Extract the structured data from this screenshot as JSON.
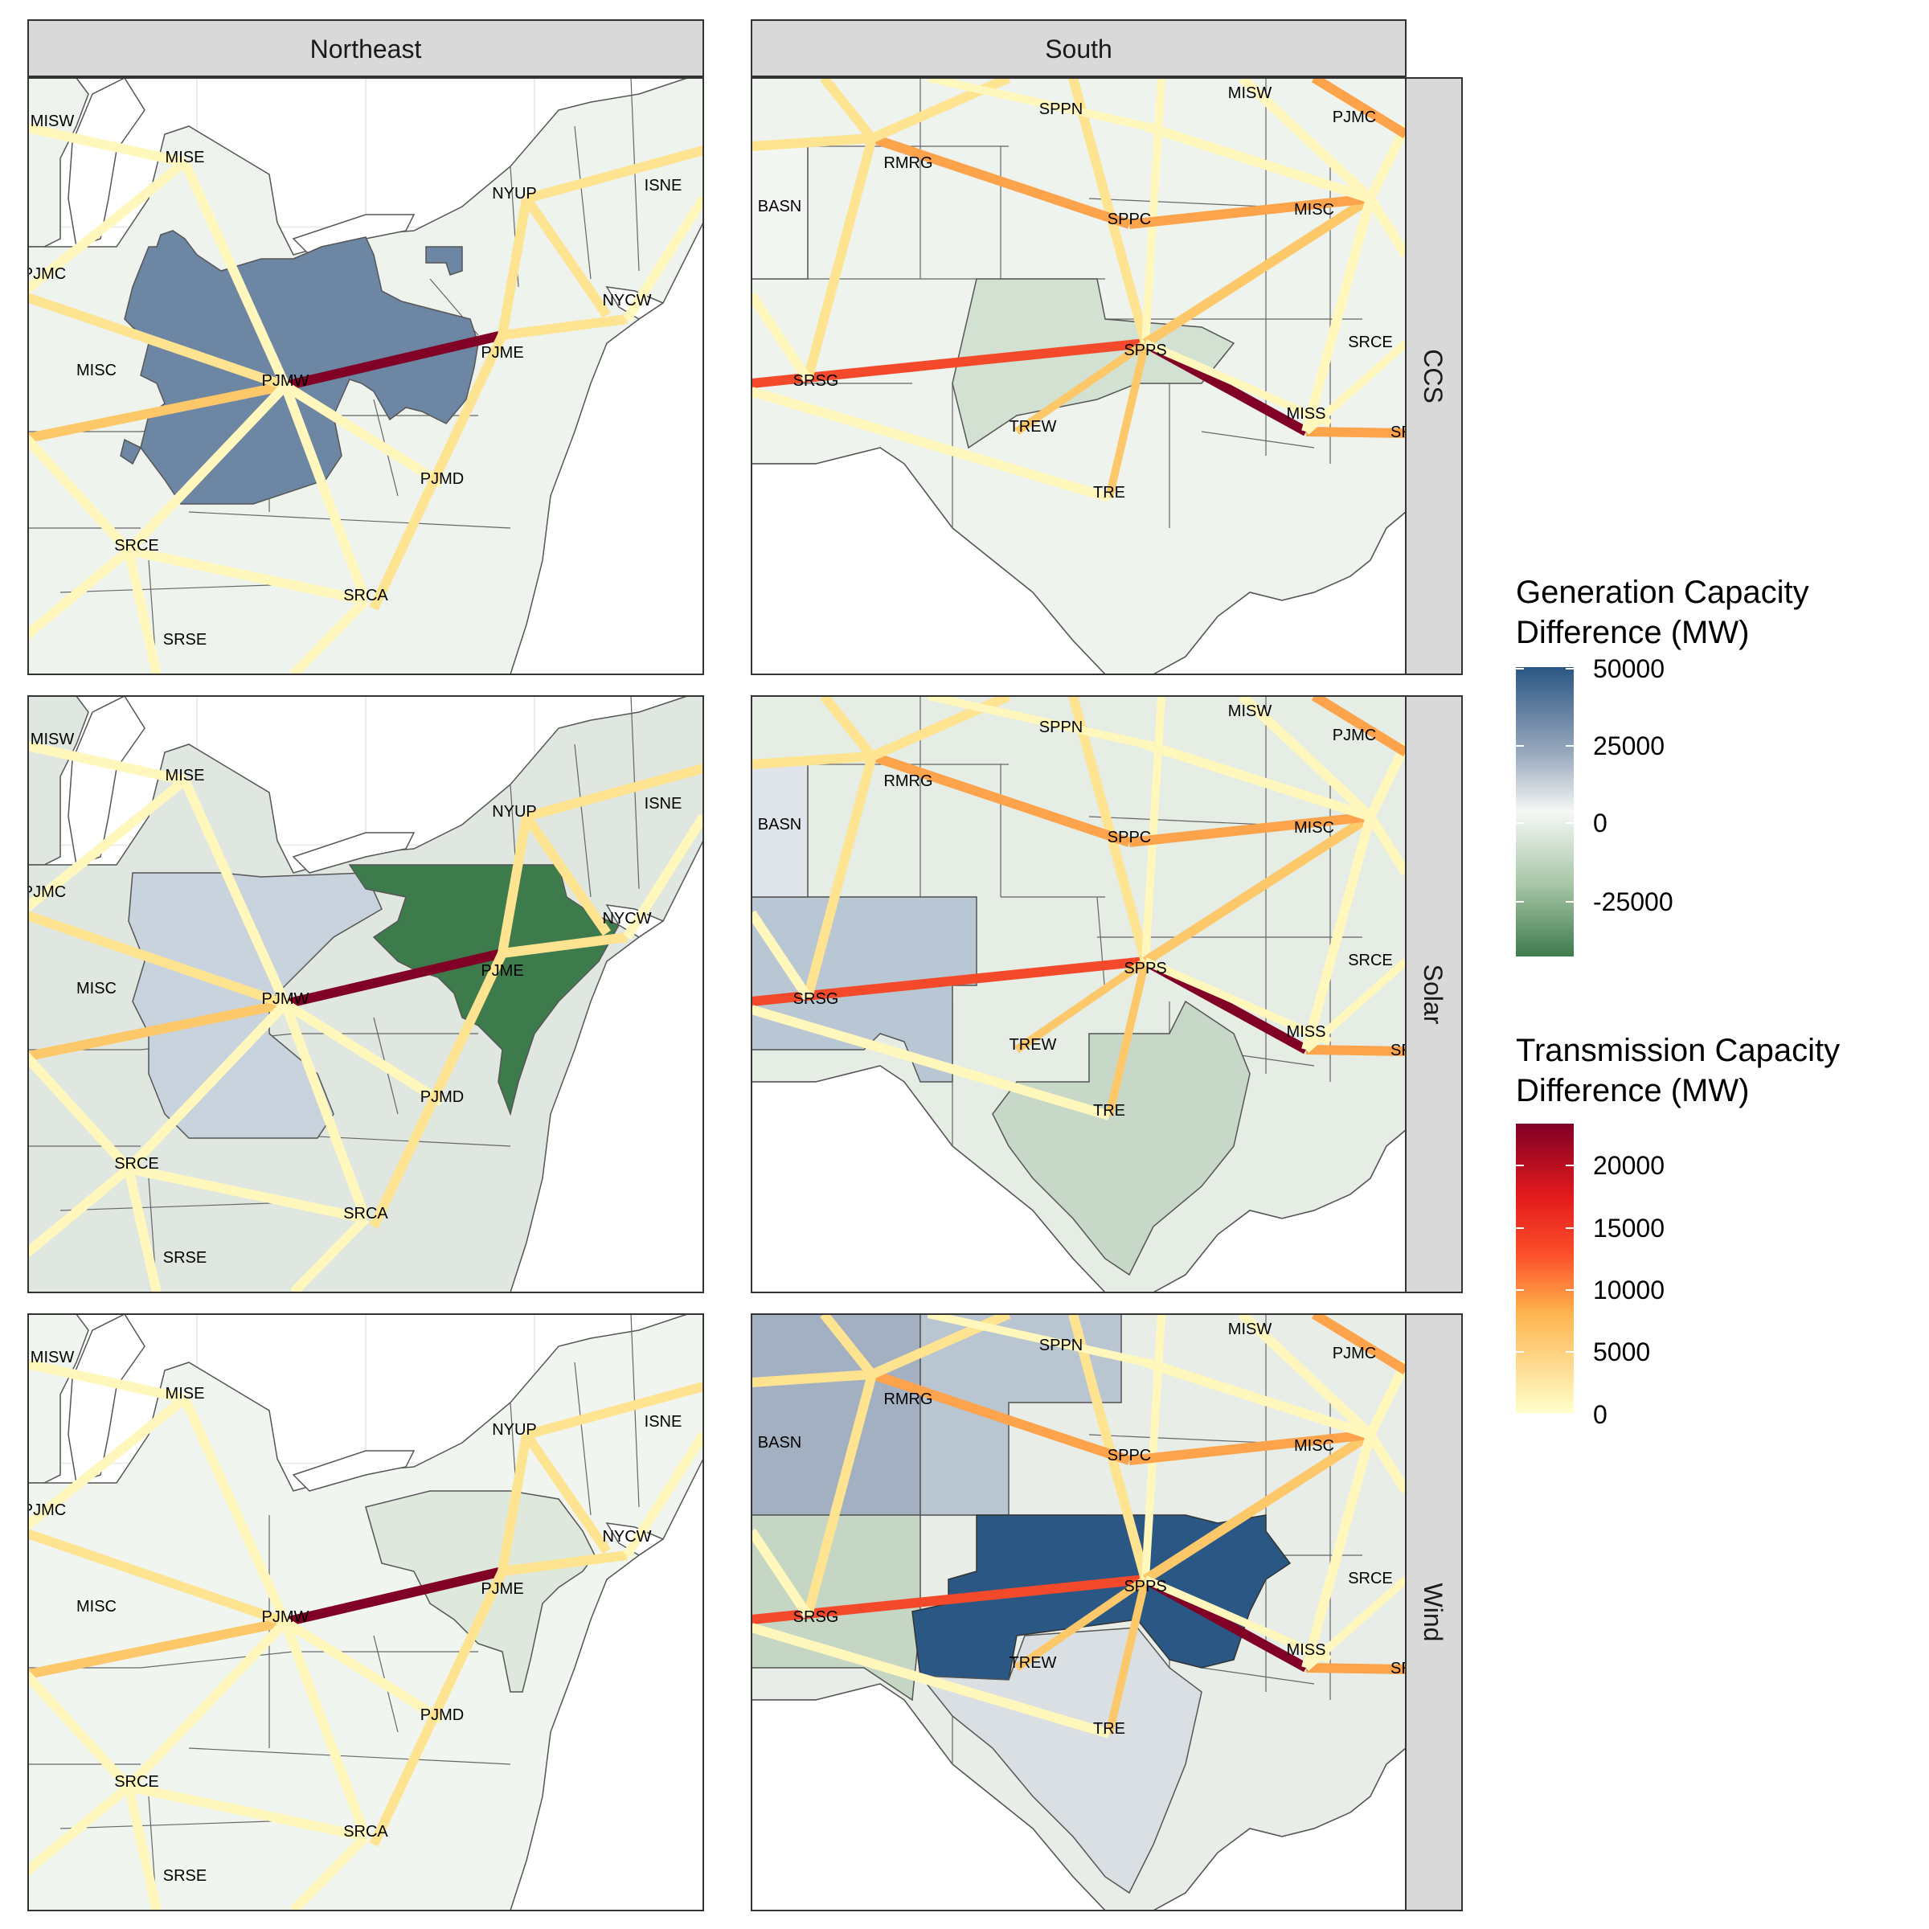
{
  "columns": [
    "Northeast",
    "South"
  ],
  "rows": [
    "CCS",
    "Solar",
    "Wind"
  ],
  "legend_generation": {
    "title_line1": "Generation Capacity",
    "title_line2": "Difference (MW)",
    "ticks": [
      "50000",
      "25000",
      "0",
      "-25000"
    ],
    "colors": [
      "#2b5784",
      "#9aa9be",
      "#f5f8f5",
      "#a8c6a8",
      "#3e7b4c"
    ]
  },
  "legend_transmission": {
    "title_line1": "Transmission Capacity",
    "title_line2": " Difference (MW)",
    "ticks": [
      "20000",
      "15000",
      "10000",
      "5000",
      "0"
    ],
    "colors": [
      "#800026",
      "#e31a1c",
      "#fc4e2a",
      "#feb24c",
      "#ffffcc"
    ]
  },
  "northeast": {
    "nodes": [
      "MISW",
      "MISE",
      "NYUP",
      "ISNE",
      "PJMC",
      "NYCW",
      "PJME",
      "MISC",
      "PJMW",
      "PJMD",
      "SRCE",
      "SRCA",
      "SRSE"
    ]
  },
  "south": {
    "nodes": [
      "MISW",
      "SPPN",
      "PJMC",
      "RMRG",
      "BASN",
      "SPPC",
      "MISC",
      "SRCE",
      "SPPS",
      "SRSG",
      "TREW",
      "MISS",
      "SRS",
      "TRE"
    ]
  },
  "panel_fills": {
    "Northeast": {
      "CCS": {
        "highlight": "#6d86a3",
        "base": "#eff3ee"
      },
      "Solar": {
        "highlight": "#3e7b4c",
        "base": "#dfe7e0",
        "secondary": "#c9d3dd"
      },
      "Wind": {
        "highlight": "#dfe8dd",
        "base": "#f1f5f0"
      }
    },
    "South": {
      "CCS": {
        "highlight": "#d3e1d2",
        "base": "#eef3ed"
      },
      "Solar": {
        "highlight": "#b9c6d3",
        "base": "#e5ede4",
        "secondary": "#c8d8c8"
      },
      "Wind": {
        "highlight": "#2b5784",
        "base": "#e8eee7",
        "secondary": "#d9dfe3"
      }
    }
  }
}
